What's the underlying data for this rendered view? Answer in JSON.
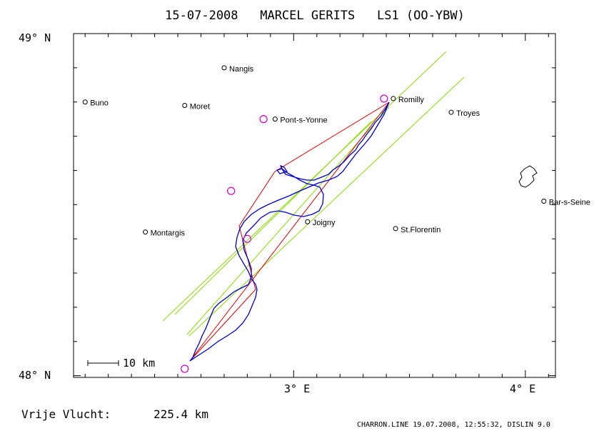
{
  "title": "15-07-2008   MARCEL GERITS   LS1 (OO-YBW)",
  "axes": {
    "lat_labels": [
      {
        "lat": 49.0,
        "text": "49° N"
      },
      {
        "lat": 48.0,
        "text": "48° N"
      }
    ],
    "lon_labels": [
      {
        "lon": 3.0,
        "text": "3° E"
      },
      {
        "lon": 4.0,
        "text": "4° E"
      }
    ]
  },
  "scale_bar": {
    "label": "10 km"
  },
  "distance": {
    "label": "Vrije Vlucht:",
    "value": "225.4 km"
  },
  "footer": "CHARRON.LINE 19.07.2008, 12:55:32, DISLIN 9.0",
  "colors": {
    "track": "#0000cc",
    "task": "#e00000",
    "sector": "#88dd00",
    "turnpoint": "#cc00cc",
    "frame": "#000000"
  },
  "towns": [
    {
      "name": "Nangis",
      "lon": 2.7,
      "lat": 48.9
    },
    {
      "name": "Romilly",
      "lon": 3.43,
      "lat": 48.81
    },
    {
      "name": "Buno",
      "lon": 2.1,
      "lat": 48.8
    },
    {
      "name": "Moret",
      "lon": 2.53,
      "lat": 48.79
    },
    {
      "name": "Troyes",
      "lon": 3.68,
      "lat": 48.77
    },
    {
      "name": "Pont-s-Yonne",
      "lon": 2.92,
      "lat": 48.75
    },
    {
      "name": "Bar-s-Seine",
      "lon": 4.08,
      "lat": 48.51
    },
    {
      "name": "Joigny",
      "lon": 3.06,
      "lat": 48.45
    },
    {
      "name": "St.Florentin",
      "lon": 3.44,
      "lat": 48.43
    },
    {
      "name": "Montargis",
      "lon": 2.36,
      "lat": 48.42
    }
  ],
  "turnpoints": [
    {
      "lon": 3.39,
      "lat": 48.81
    },
    {
      "lon": 2.87,
      "lat": 48.75
    },
    {
      "lon": 2.73,
      "lat": 48.54
    },
    {
      "lon": 2.8,
      "lat": 48.4
    },
    {
      "lon": 2.53,
      "lat": 48.02
    }
  ]
}
